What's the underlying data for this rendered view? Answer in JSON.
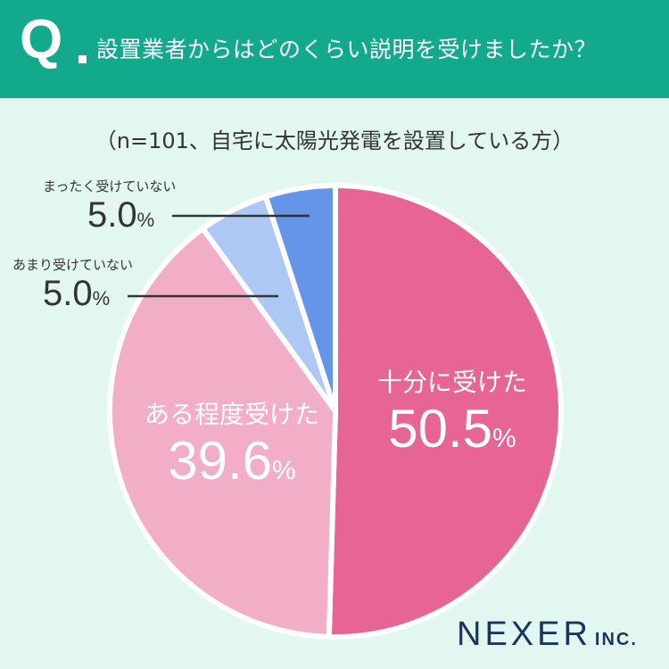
{
  "header": {
    "q_mark": "Q",
    "question": "設置業者からはどのくらい説明を受けましたか？"
  },
  "subtitle": "（n=101、自宅に太陽光発電を設置している方）",
  "chart_data": {
    "type": "pie",
    "title": "設置業者からはどのくらい説明を受けましたか？",
    "subtitle": "（n=101、自宅に太陽光発電を設置している方）",
    "unit": "%",
    "slices": [
      {
        "label": "十分に受けた",
        "value": 50.5,
        "display": "50.5",
        "color": "#e76594"
      },
      {
        "label": "ある程度受けた",
        "value": 39.6,
        "display": "39.6",
        "color": "#f2adc7"
      },
      {
        "label": "あまり受けていない",
        "value": 5.0,
        "display": "5.0",
        "color": "#adc8f5"
      },
      {
        "label": "まったく受けていない",
        "value": 5.0,
        "display": "5.0",
        "color": "#6595e6"
      }
    ]
  },
  "logo": {
    "main": "NEXER",
    "inc": "INC."
  }
}
